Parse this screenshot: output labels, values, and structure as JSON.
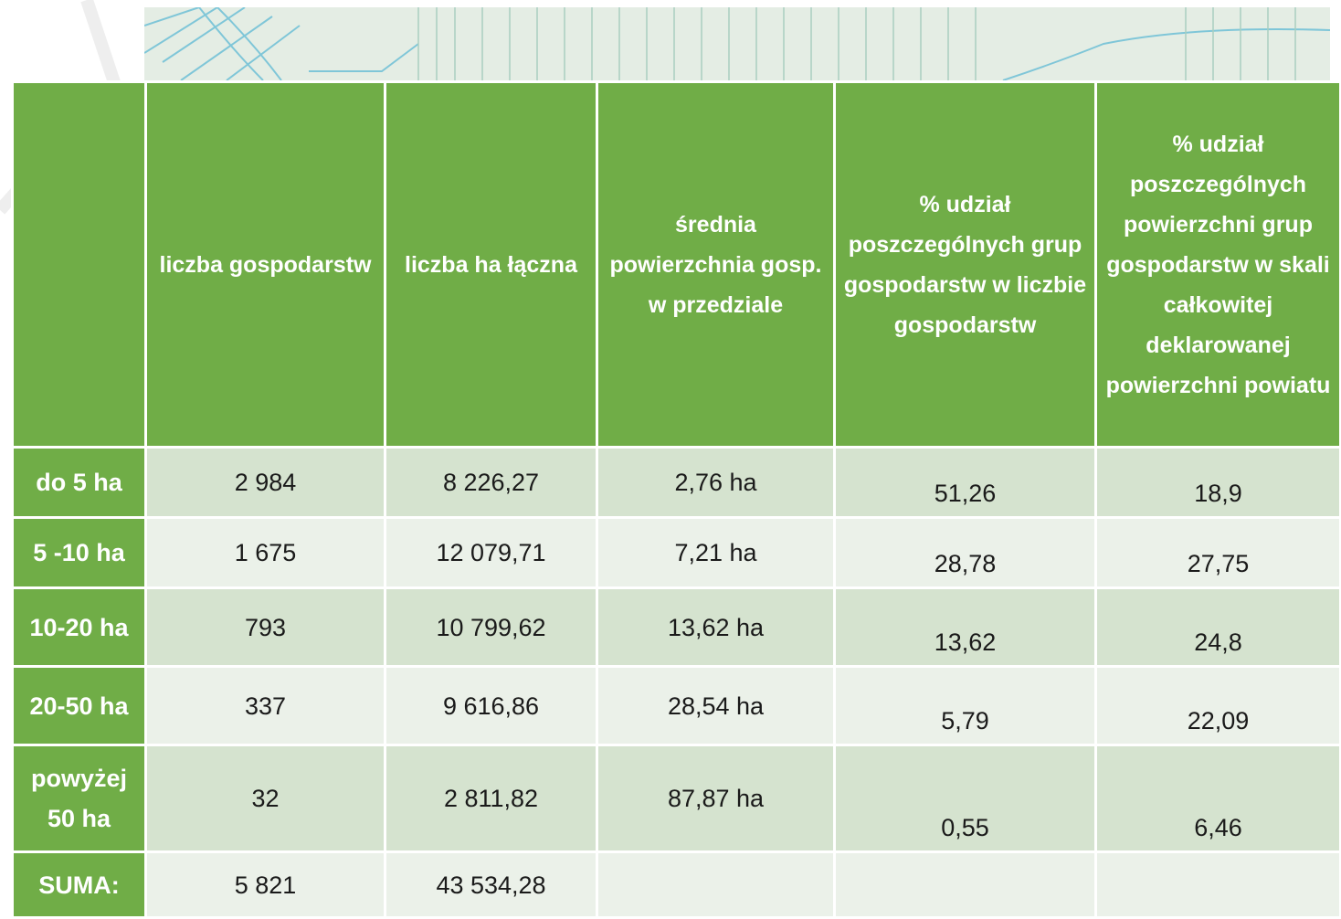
{
  "table": {
    "header": [
      "liczba gospodarstw",
      "liczba ha łączna",
      "średnia powierzchnia gosp.  w przedziale",
      "% udział poszczególnych grup gospodarstw w liczbie gospodarstw",
      "% udział poszczególnych powierzchni grup gospodarstw w skali całkowitej deklarowanej powierzchni powiatu"
    ],
    "rows": [
      [
        "do 5 ha",
        "2 984",
        "8 226,27",
        "2,76 ha",
        "51,26",
        "18,9"
      ],
      [
        "5 -10 ha",
        "1 675",
        "12 079,71",
        "7,21 ha",
        "28,78",
        "27,75"
      ],
      [
        "10-20 ha",
        "793",
        "10 799,62",
        "13,62 ha",
        "13,62",
        "24,8"
      ],
      [
        "20-50 ha",
        "337",
        "9 616,86",
        "28,54 ha",
        "5,79",
        "22,09"
      ],
      [
        "powyżej 50 ha",
        "32",
        "2 811,82",
        "87,87 ha",
        "0,55",
        "6,46"
      ],
      [
        "SUMA:",
        "5 821",
        "43 534,28"
      ]
    ]
  }
}
